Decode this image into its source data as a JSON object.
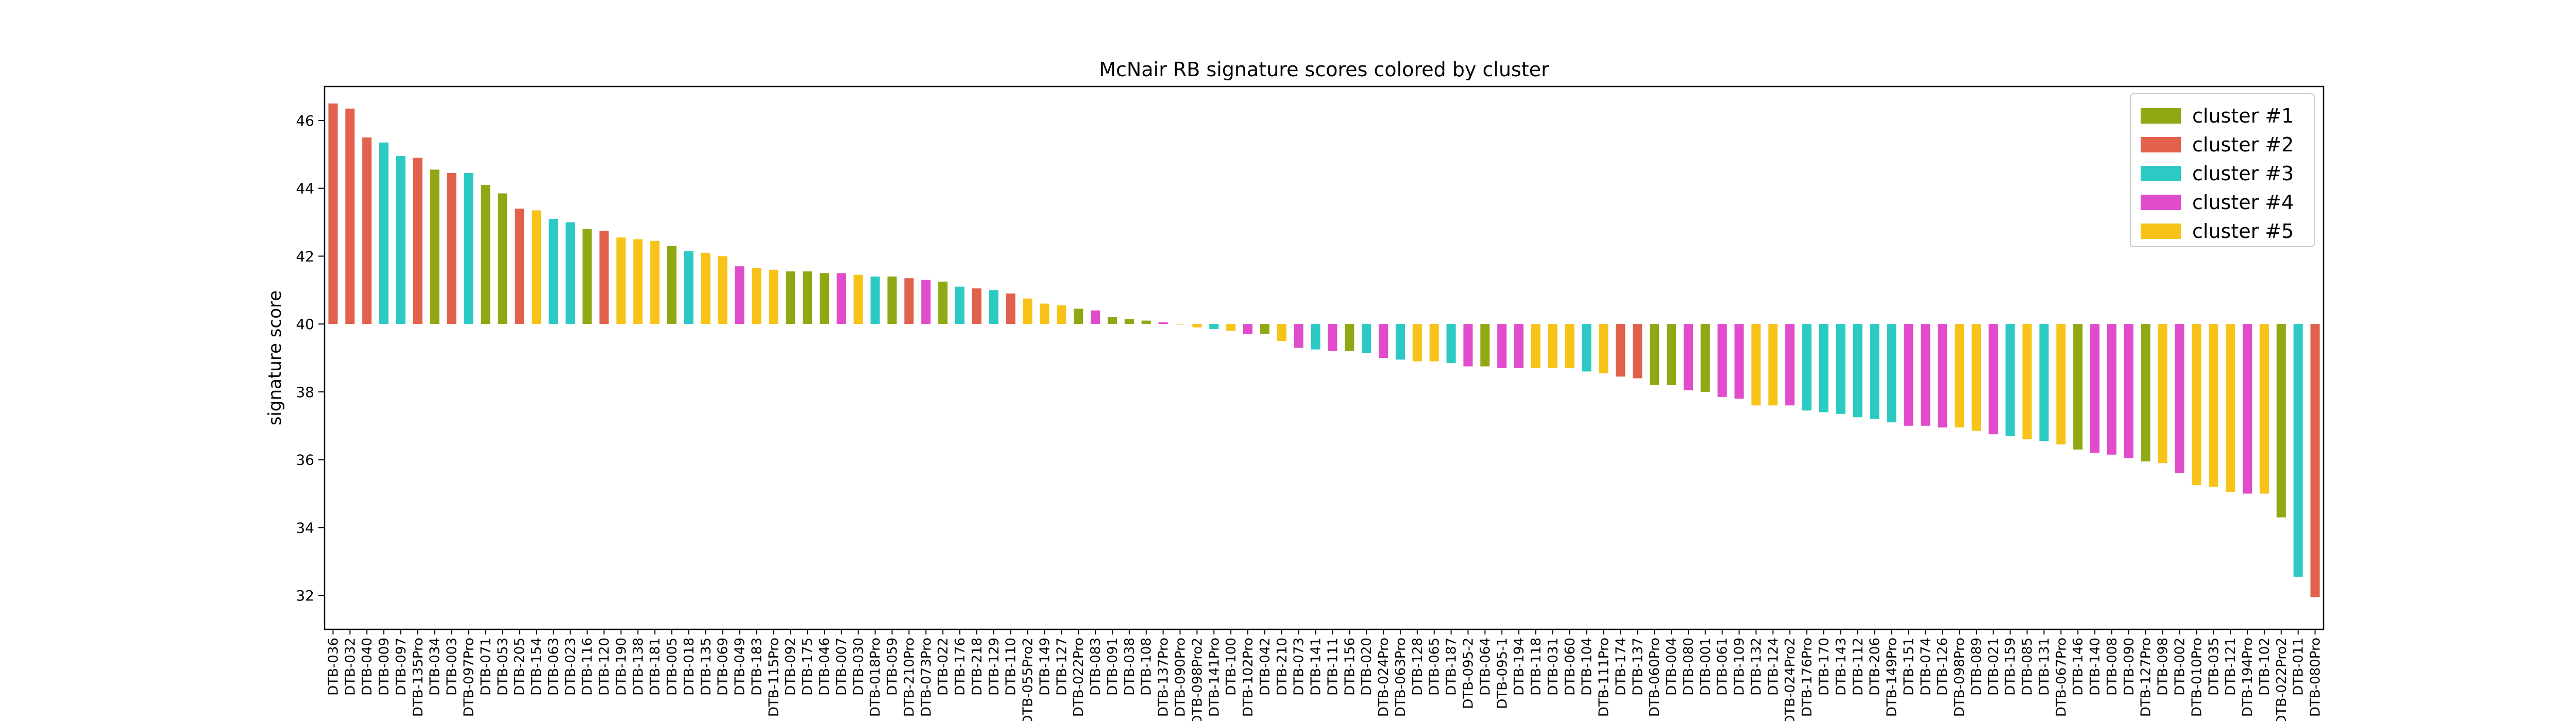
{
  "chart_data": {
    "type": "bar",
    "title": "McNair RB signature scores colored by cluster",
    "xlabel": "",
    "ylabel": "signature score",
    "ylim": [
      31,
      47
    ],
    "baseline": 40,
    "yticks": [
      32,
      34,
      36,
      38,
      40,
      42,
      44,
      46
    ],
    "grid": false,
    "legend_position": "top-right",
    "clusters": [
      {
        "name": "cluster #1",
        "color": "#8fa814"
      },
      {
        "name": "cluster #2",
        "color": "#e1614c"
      },
      {
        "name": "cluster #3",
        "color": "#2ccac4"
      },
      {
        "name": "cluster #4",
        "color": "#e14ccc"
      },
      {
        "name": "cluster #5",
        "color": "#f7c319"
      }
    ],
    "categories": [
      "DTB-036",
      "DTB-032",
      "DTB-040",
      "DTB-009",
      "DTB-097",
      "DTB-135Pro",
      "DTB-034",
      "DTB-003",
      "DTB-097Pro",
      "DTB-071",
      "DTB-053",
      "DTB-205",
      "DTB-154",
      "DTB-063",
      "DTB-023",
      "DTB-116",
      "DTB-120",
      "DTB-190",
      "DTB-138",
      "DTB-181",
      "DTB-005",
      "DTB-018",
      "DTB-135",
      "DTB-069",
      "DTB-049",
      "DTB-183",
      "DTB-115Pro",
      "DTB-092",
      "DTB-175",
      "DTB-046",
      "DTB-007",
      "DTB-030",
      "DTB-018Pro",
      "DTB-059",
      "DTB-210Pro",
      "DTB-073Pro",
      "DTB-022",
      "DTB-176",
      "DTB-218",
      "DTB-129",
      "DTB-110",
      "DTB-055Pro2",
      "DTB-149",
      "DTB-127",
      "DTB-022Pro",
      "DTB-083",
      "DTB-091",
      "DTB-038",
      "DTB-108",
      "DTB-137Pro",
      "DTB-090Pro",
      "DTB-098Pro2",
      "DTB-141Pro",
      "DTB-100",
      "DTB-102Pro",
      "DTB-042",
      "DTB-210",
      "DTB-073",
      "DTB-141",
      "DTB-111",
      "DTB-156",
      "DTB-020",
      "DTB-024Pro",
      "DTB-063Pro",
      "DTB-128",
      "DTB-065",
      "DTB-187",
      "DTB-095-2",
      "DTB-064",
      "DTB-095-1",
      "DTB-194",
      "DTB-118",
      "DTB-031",
      "DTB-060",
      "DTB-104",
      "DTB-111Pro",
      "DTB-174",
      "DTB-137",
      "DTB-060Pro",
      "DTB-004",
      "DTB-080",
      "DTB-001",
      "DTB-061",
      "DTB-109",
      "DTB-132",
      "DTB-124",
      "DTB-024Pro2",
      "DTB-176Pro",
      "DTB-170",
      "DTB-143",
      "DTB-112",
      "DTB-206",
      "DTB-149Pro",
      "DTB-151",
      "DTB-074",
      "DTB-126",
      "DTB-098Pro",
      "DTB-089",
      "DTB-021",
      "DTB-159",
      "DTB-085",
      "DTB-131",
      "DTB-067Pro",
      "DTB-146",
      "DTB-140",
      "DTB-008",
      "DTB-090",
      "DTB-127Pro",
      "DTB-098",
      "DTB-002",
      "DTB-010Pro",
      "DTB-035",
      "DTB-121",
      "DTB-194Pro",
      "DTB-102",
      "DTB-022Pro2",
      "DTB-011",
      "DTB-080Pro"
    ],
    "values": [
      46.5,
      46.35,
      45.5,
      45.35,
      44.95,
      44.9,
      44.55,
      44.45,
      44.45,
      44.1,
      43.85,
      43.4,
      43.35,
      43.1,
      43.0,
      42.8,
      42.75,
      42.55,
      42.5,
      42.45,
      42.3,
      42.15,
      42.1,
      42.0,
      41.7,
      41.65,
      41.6,
      41.55,
      41.55,
      41.5,
      41.5,
      41.45,
      41.4,
      41.4,
      41.35,
      41.3,
      41.25,
      41.1,
      41.05,
      41.0,
      40.9,
      40.75,
      40.6,
      40.55,
      40.45,
      40.4,
      40.2,
      40.15,
      40.1,
      40.05,
      40.0,
      39.9,
      39.85,
      39.8,
      39.7,
      39.7,
      39.5,
      39.3,
      39.25,
      39.2,
      39.2,
      39.15,
      39.0,
      38.95,
      38.9,
      38.9,
      38.85,
      38.75,
      38.75,
      38.7,
      38.7,
      38.7,
      38.7,
      38.7,
      38.6,
      38.55,
      38.45,
      38.4,
      38.2,
      38.2,
      38.05,
      38.0,
      37.85,
      37.8,
      37.6,
      37.6,
      37.6,
      37.45,
      37.4,
      37.35,
      37.25,
      37.2,
      37.1,
      37.0,
      37.0,
      36.95,
      36.95,
      36.85,
      36.75,
      36.7,
      36.6,
      36.55,
      36.45,
      36.3,
      36.2,
      36.15,
      36.05,
      35.95,
      35.9,
      35.6,
      35.25,
      35.2,
      35.05,
      35.0,
      35.0,
      34.3,
      32.55,
      31.95
    ],
    "cluster_ids": [
      2,
      2,
      2,
      3,
      3,
      2,
      1,
      2,
      3,
      1,
      1,
      2,
      5,
      3,
      3,
      1,
      2,
      5,
      5,
      5,
      1,
      3,
      5,
      5,
      4,
      5,
      5,
      1,
      1,
      1,
      4,
      5,
      3,
      1,
      2,
      4,
      1,
      3,
      2,
      3,
      2,
      5,
      5,
      5,
      1,
      4,
      1,
      1,
      1,
      4,
      5,
      5,
      3,
      5,
      4,
      1,
      5,
      4,
      3,
      4,
      1,
      3,
      4,
      3,
      5,
      5,
      3,
      4,
      1,
      4,
      4,
      5,
      5,
      5,
      3,
      5,
      2,
      2,
      1,
      1,
      4,
      1,
      4,
      4,
      5,
      5,
      4,
      3,
      3,
      3,
      3,
      3,
      3,
      4,
      4,
      4,
      5,
      5,
      4,
      3,
      5,
      3,
      5,
      1,
      4,
      4,
      4,
      1,
      5,
      4,
      5,
      5,
      5,
      4,
      5,
      1,
      3,
      2
    ]
  }
}
